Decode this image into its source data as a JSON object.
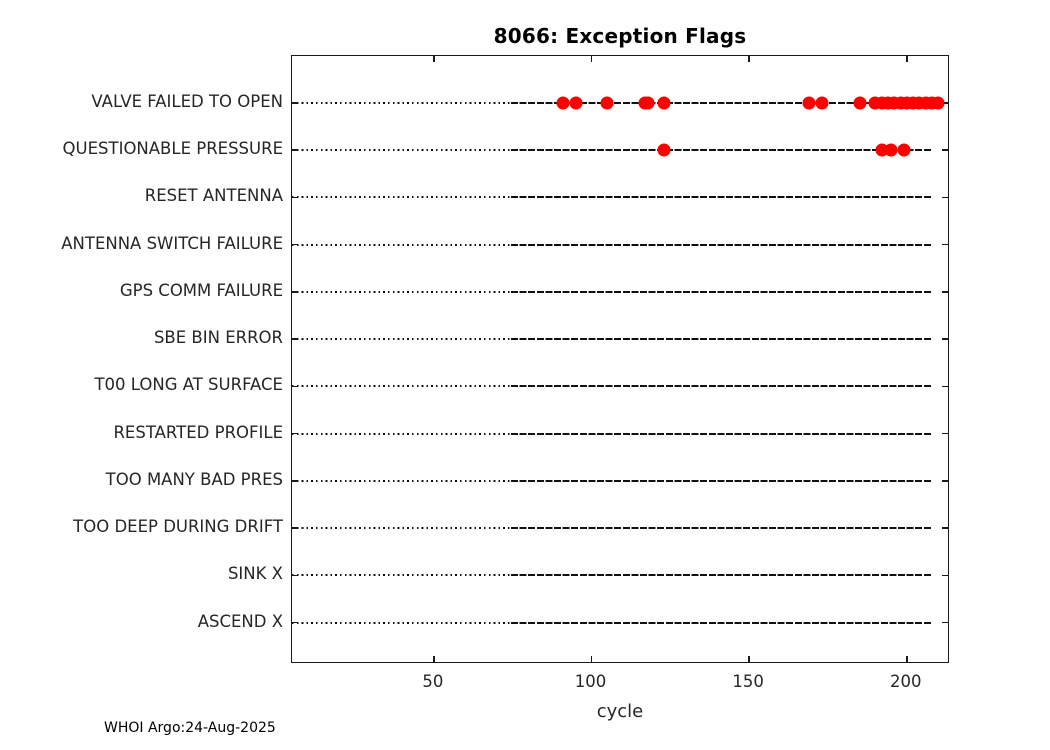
{
  "title": "8066: Exception Flags",
  "footer": "WHOI Argo:24-Aug-2025",
  "colors": {
    "marker": "#ff0000",
    "axis": "#1a1a1a",
    "text": "#262626",
    "row_line": "#111111"
  },
  "chart_data": {
    "type": "scatter",
    "title": "8066: Exception Flags",
    "xlabel": "cycle",
    "xlim": [
      5,
      213.7
    ],
    "xticks": [
      50,
      100,
      150,
      200
    ],
    "grid": "dotted horizontal row lines",
    "legend": "none",
    "categories": [
      "VALVE FAILED TO OPEN",
      "QUESTIONABLE PRESSURE",
      "RESET ANTENNA",
      "ANTENNA SWITCH FAILURE",
      "GPS COMM FAILURE",
      "SBE BIN ERROR",
      "T00 LONG AT SURFACE",
      "RESTARTED PROFILE",
      "TOO MANY BAD PRES",
      "TOO DEEP DURING DRIFT",
      "SINK X",
      "ASCEND X"
    ],
    "series": [
      {
        "name": "VALVE FAILED TO OPEN",
        "cycles": [
          91,
          95,
          105,
          117,
          118,
          123,
          169,
          173,
          185,
          190,
          192,
          194,
          196,
          198,
          200,
          202,
          204,
          206,
          208,
          210
        ]
      },
      {
        "name": "QUESTIONABLE PRESSURE",
        "cycles": [
          123,
          192,
          195,
          199
        ]
      },
      {
        "name": "RESET ANTENNA",
        "cycles": []
      },
      {
        "name": "ANTENNA SWITCH FAILURE",
        "cycles": []
      },
      {
        "name": "GPS COMM FAILURE",
        "cycles": []
      },
      {
        "name": "SBE BIN ERROR",
        "cycles": []
      },
      {
        "name": "T00 LONG AT SURFACE",
        "cycles": []
      },
      {
        "name": "RESTARTED PROFILE",
        "cycles": []
      },
      {
        "name": "TOO MANY BAD PRES",
        "cycles": []
      },
      {
        "name": "TOO DEEP DURING DRIFT",
        "cycles": []
      },
      {
        "name": "SINK X",
        "cycles": []
      },
      {
        "name": "ASCEND X",
        "cycles": []
      }
    ]
  }
}
